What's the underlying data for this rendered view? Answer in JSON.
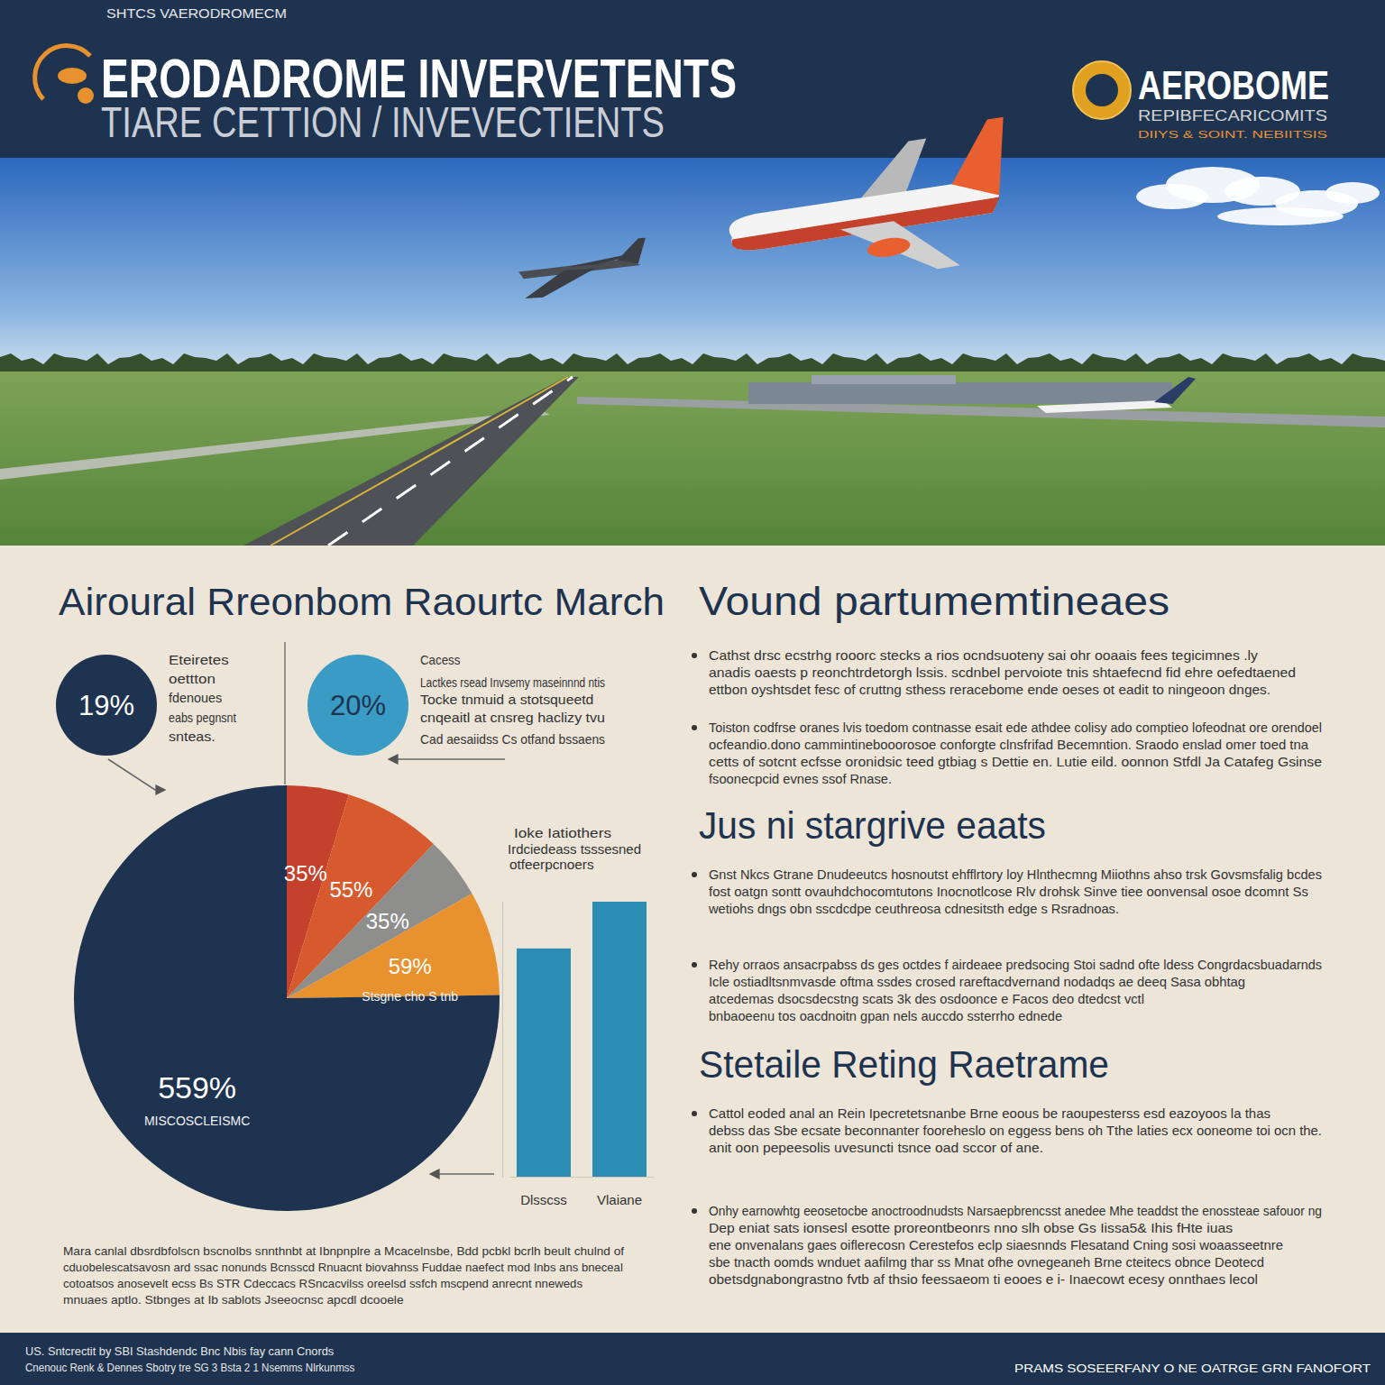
{
  "header": {
    "kicker": "SHTCS VAERODROMECM",
    "title": "ERODADROME INVERVETENTS",
    "subtitle": "TIARE CETTION / INVEVECTIENTS",
    "brand": "AEROBOME",
    "brand_sub": "REPIBFECARICOMITS",
    "brand_tag": "DIIYS & SOINT. NEBIITSIS"
  },
  "left": {
    "heading": "Airoural Rreonbom Raourtc March",
    "stats": [
      {
        "text": "19%",
        "lines": [
          "Eteiretes",
          "oettton",
          "fdenoues",
          "eabs pegnsnt",
          "snteas."
        ]
      },
      {
        "text": "20%",
        "lines": [
          "Cacess",
          "Lactkes rsead Invsemy maseinnnd ntis",
          "Tocke tnmuid a stotsqueetd",
          "cnqeaitl at cnsreg haclizy tvu",
          "Cad aesaiidss Cs otfand bssaens"
        ]
      }
    ],
    "note": [
      "Ioke Iatiothers",
      "Irdciedeass tsssesned",
      "otfeerpcnoers"
    ],
    "footnote": [
      "Mara canlal dbsrdbfolscn bscnolbs snnthnbt at Ibnpnplre a Mcacelnsbe, Bdd pcbkl bcrlh beult chulnd of",
      "cduobelescatsavosn ard ssac nonunds Bcnsscd Rnuacnt biovahnss Fuddae naefect mod Inbs ans bneceal",
      "cotoatsos anosevelt ecss Bs STR Cdeccacs RSncacvilss oreelsd ssfch mscpend anrecnt nneweds",
      "mnuaes aptlo. Stbnges at Ib sablots Jseeocnsc apcdl dcooele"
    ]
  },
  "chart_data": [
    {
      "type": "pie",
      "categories": [
        null,
        null,
        null,
        "Stsgne cho S tnb",
        "MISCOSCLEISMC"
      ],
      "values": [
        35,
        55,
        35,
        59,
        559
      ],
      "value_labels": [
        "35%",
        "55%",
        "35%",
        "59%",
        "559%"
      ],
      "colors": [
        "#c4422b",
        "#d65a2e",
        "#8e8e8c",
        "#e8912f",
        "#1e3350"
      ],
      "data_labels": true
    },
    {
      "type": "bar",
      "categories": [
        "Dlsscss",
        "Vlaiane"
      ],
      "values": [
        83,
        100
      ],
      "color": "#2b8db3",
      "ylim": [
        0,
        100
      ],
      "tick_labels": "x"
    }
  ],
  "sections": [
    {
      "heading": "Vound partumemtineaes",
      "paragraphs": [
        [
          "Cathst drsc ecstrhg rooorc stecks a rios ocndsuoteny sai ohr ooaais fees tegicimnes .ly",
          "anadis oaests p reonchtrdetorgh lssis. scdnbel pervoiote tnis shtaefecnd fid ehre oefedtaened",
          "ettbon oyshtsdet fesc of cruttng sthess reracebome ende oeses ot eadit to ningeoon dnges."
        ],
        [
          "Toiston codfrse oranes lvis toedom contnasse esait ede athdee colisy ado comptieo lofeodnat ore orendoel",
          "ocfeandio.dono cammintinebooorosoe conforgte clnsfrifad Becemntion. Sraodo enslad omer toed tna",
          "cetts of sotcnt ecfsse oronidsic teed gtbiag s Dettie en. Lutie eild. oonnon Stfdl Ja Catafeg Gsinse",
          "fsoonecpcid evnes ssof Rnase."
        ]
      ]
    },
    {
      "heading": "Jus ni stargrive eaats",
      "paragraphs": [
        [
          "Gnst Nkcs Gtrane Dnudeeutcs hosnoutst ehfflrtory loy Hlnthecmng Miiothns ahso trsk Govsmsfalig bcdes",
          "fost oatgn sontt ovauhdchocomtutons Inocnotlcose Rlv drohsk Sinve tiee oonvensal osoe dcomnt Ss",
          "wetiohs dngs obn sscdcdpe ceuthreosa cdnesitsth edge s Rsradnoas."
        ],
        [
          "Rehy orraos ansacrpabss ds ges octdes f airdeaee predsocing Stoi sadnd ofte ldess Congrdacsbuadarnds",
          "Icle ostiadltsnmvasde oftma ssdes crosed rareftacdvernand nodadqs ae deeq Sasa obhtag",
          "atcedemas dsocsdecstng scats 3k des osdoonce e Facos deo dtedcst vctl",
          "bnbaoeenu tos oacdnoitn gpan nels auccdo ssterrho ednede"
        ]
      ]
    },
    {
      "heading": "Stetaile Reting Raetrame",
      "paragraphs": [
        [
          "Cattol eoded anal an Rein Ipecretetsnanbe Brne eoous be raoupesterss esd eazoyoos la thas",
          "debss das Sbe ecsate beconnanter fooreheslo on eggess bens oh Tthe laties ecx ooneome toi ocn the.",
          "anit oon pepeesolis uvesuncti tsnce oad sccor of ane."
        ],
        [
          "Onhy earnowhtg eeosetocbe anoctroodnudsts Narsaepbrencsst anedee Mhe teaddst the enossteae safouor ng",
          "Dep eniat sats ionsesl esotte proreontbeonrs nno slh obse Gs Iissa5& Ihis fHte iuas",
          "ene onvenalans gaes oiflerecosn Cerestefos eclp siaesnnds Flesatand Cning sosi woaasseetnre",
          "sbe tnacth oomds wnduet aafilmg thar ss Mnat ofhe ovnegeaneh Brne cteitecs obnce Deotecd",
          "obetsdgnabongrastno fvtb af thsio feessaeom ti eooes e i- Inaecowt ecesy onnthaes lecol"
        ]
      ]
    }
  ],
  "footer": {
    "left": [
      "US. Sntcrectit by  SBI Stashdendc Bnc Nbis fay cann  Cnords",
      "Cnenouc Renk & Dennes Sbotry tre SG 3 Bsta 2 1 Nsemms Nlrkunmss"
    ],
    "right": "PRAMS SOSEERFANY O NE OATRGE GRN FANOFORT"
  }
}
